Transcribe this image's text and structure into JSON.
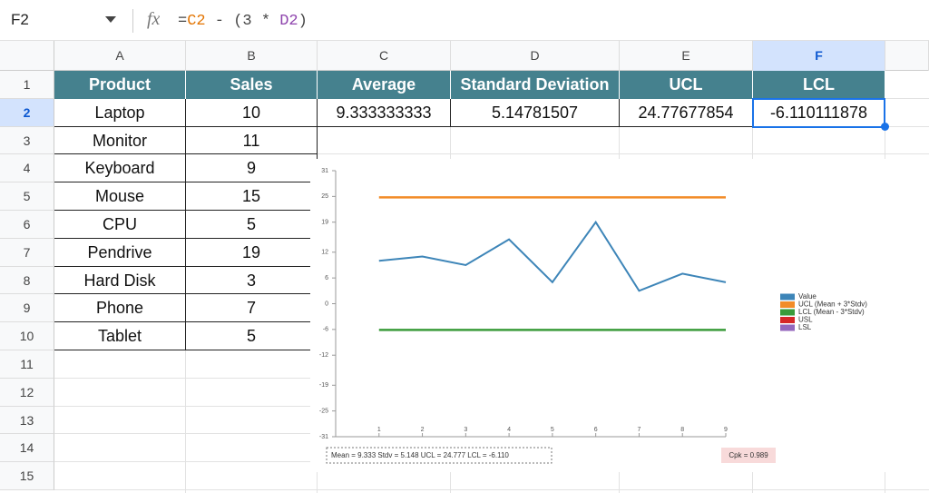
{
  "formula_bar": {
    "cell": "F2",
    "formula": [
      {
        "text": "=",
        "color": "#444"
      },
      {
        "text": "C2",
        "color": "#e37400"
      },
      {
        "text": " - (3 * ",
        "color": "#444"
      },
      {
        "text": "D2",
        "color": "#8e44ad"
      },
      {
        "text": ")",
        "color": "#444"
      }
    ]
  },
  "columns": [
    "A",
    "B",
    "C",
    "D",
    "E",
    "F"
  ],
  "row_numbers": [
    "1",
    "2",
    "3",
    "4",
    "5",
    "6",
    "7",
    "8",
    "9",
    "10",
    "11",
    "12",
    "13",
    "14",
    "15"
  ],
  "table": {
    "header": [
      "Product",
      "Sales",
      "Average",
      "Standard Deviation",
      "UCL",
      "LCL"
    ],
    "rows": [
      [
        "Laptop",
        "10",
        "9.333333333",
        "5.14781507",
        "24.77677854",
        "-6.110111878"
      ],
      [
        "Monitor",
        "11"
      ],
      [
        "Keyboard",
        "9"
      ],
      [
        "Mouse",
        "15"
      ],
      [
        "CPU",
        "5"
      ],
      [
        "Pendrive",
        "19"
      ],
      [
        "Hard Disk",
        "3"
      ],
      [
        "Phone",
        "7"
      ],
      [
        "Tablet",
        "5"
      ]
    ]
  },
  "chart_data": {
    "type": "line",
    "x": [
      1,
      2,
      3,
      4,
      5,
      6,
      7,
      8,
      9
    ],
    "xlim": [
      0,
      9
    ],
    "xticks": [
      1,
      2,
      3,
      4,
      5,
      6,
      7,
      8,
      9
    ],
    "ylim": [
      -31,
      31
    ],
    "yticks": [
      -31,
      -25,
      -19,
      -12,
      -6,
      0,
      6,
      12,
      19,
      25,
      31
    ],
    "series": [
      {
        "name": "Value",
        "color": "#3d85b8",
        "values": [
          10,
          11,
          9,
          15,
          5,
          19,
          3,
          7,
          5
        ]
      },
      {
        "name": "UCL (Mean + 3*Stdv)",
        "color": "#f28c28",
        "values": [
          24.777,
          24.777,
          24.777,
          24.777,
          24.777,
          24.777,
          24.777,
          24.777,
          24.777
        ]
      },
      {
        "name": "LCL (Mean - 3*Stdv)",
        "color": "#3a9b3a",
        "values": [
          -6.11,
          -6.11,
          -6.11,
          -6.11,
          -6.11,
          -6.11,
          -6.11,
          -6.11,
          -6.11
        ]
      },
      {
        "name": "USL",
        "color": "#d62728",
        "values": [
          null,
          null,
          null,
          null,
          null,
          null,
          null,
          null,
          null
        ]
      },
      {
        "name": "LSL",
        "color": "#9467bd",
        "values": [
          null,
          null,
          null,
          null,
          null,
          null,
          null,
          null,
          null
        ]
      }
    ],
    "annotations": [
      "Mean = 9.333  Stdv = 5.148  UCL = 24.777  LCL = -6.110",
      "Cpk = 0.989"
    ]
  }
}
